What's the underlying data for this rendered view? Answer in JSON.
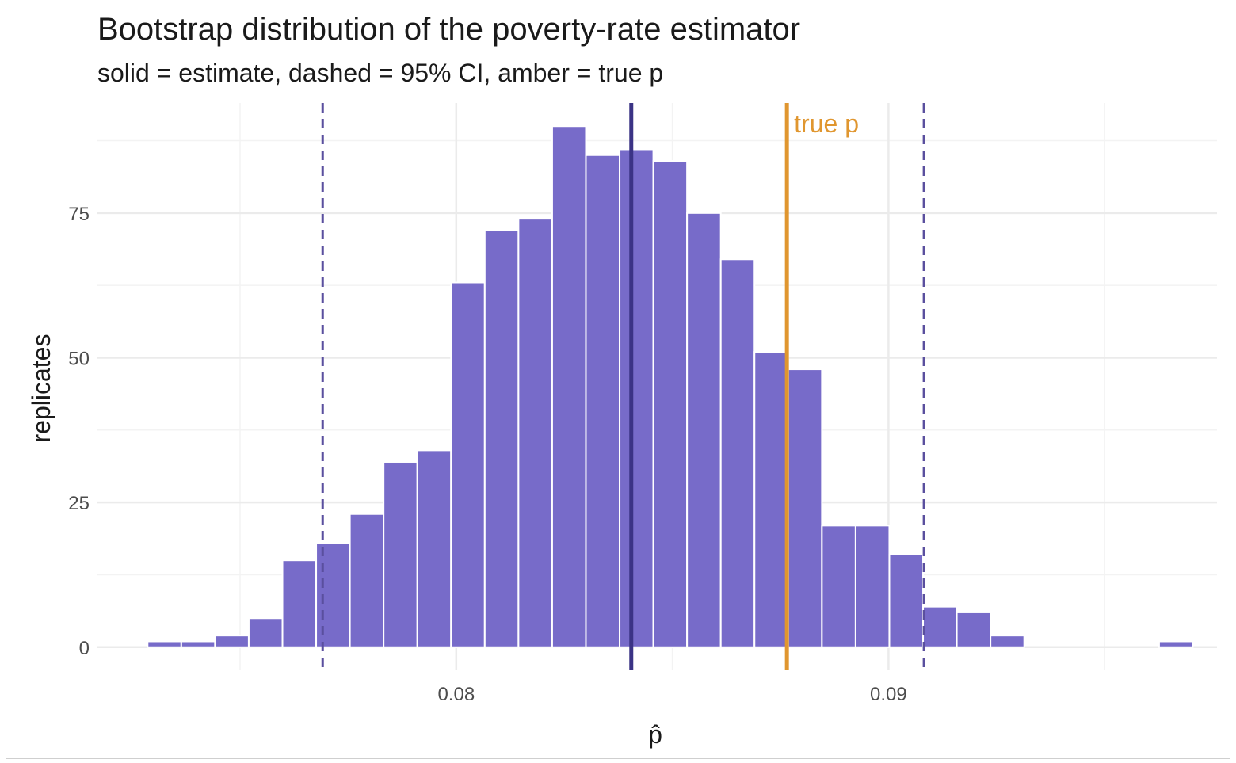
{
  "chart_data": {
    "type": "bar",
    "title": "Bootstrap distribution of the poverty-rate estimator",
    "subtitle": "solid = estimate, dashed = 95% CI, amber = true p",
    "xlabel": "p̂",
    "ylabel": "replicates",
    "bin_width": 0.00078,
    "bin_centers": [
      0.07325,
      0.07403,
      0.07481,
      0.07559,
      0.07637,
      0.07715,
      0.07793,
      0.07871,
      0.07949,
      0.08027,
      0.08105,
      0.08183,
      0.08261,
      0.08339,
      0.08417,
      0.08495,
      0.08573,
      0.08651,
      0.08729,
      0.08807,
      0.08885,
      0.08963,
      0.09041,
      0.09119,
      0.09197,
      0.09275,
      0.09353,
      0.09431,
      0.09509,
      0.09587,
      0.09665
    ],
    "values": [
      1,
      1,
      2,
      5,
      15,
      18,
      23,
      32,
      34,
      63,
      72,
      74,
      90,
      85,
      86,
      84,
      75,
      67,
      51,
      48,
      21,
      21,
      16,
      7,
      6,
      2,
      0,
      0,
      0,
      0,
      1
    ],
    "xlim": [
      0.0717,
      0.0976
    ],
    "ylim": [
      -4,
      94
    ],
    "x_ticks": [
      0.08,
      0.09
    ],
    "x_tick_labels": [
      "0.08",
      "0.09"
    ],
    "y_ticks": [
      0,
      25,
      50,
      75
    ],
    "y_tick_labels": [
      "0",
      "25",
      "50",
      "75"
    ],
    "estimate": 0.08405,
    "ci": [
      0.07691,
      0.09082
    ],
    "true_p": 0.08765,
    "true_p_label": "true p",
    "grid": true,
    "colors": {
      "bar_fill": "#776bc9",
      "estimate_line": "#3b3385",
      "ci_line": "#5a4f9e",
      "true_line": "#e0962f",
      "true_label": "#e0962f"
    }
  }
}
